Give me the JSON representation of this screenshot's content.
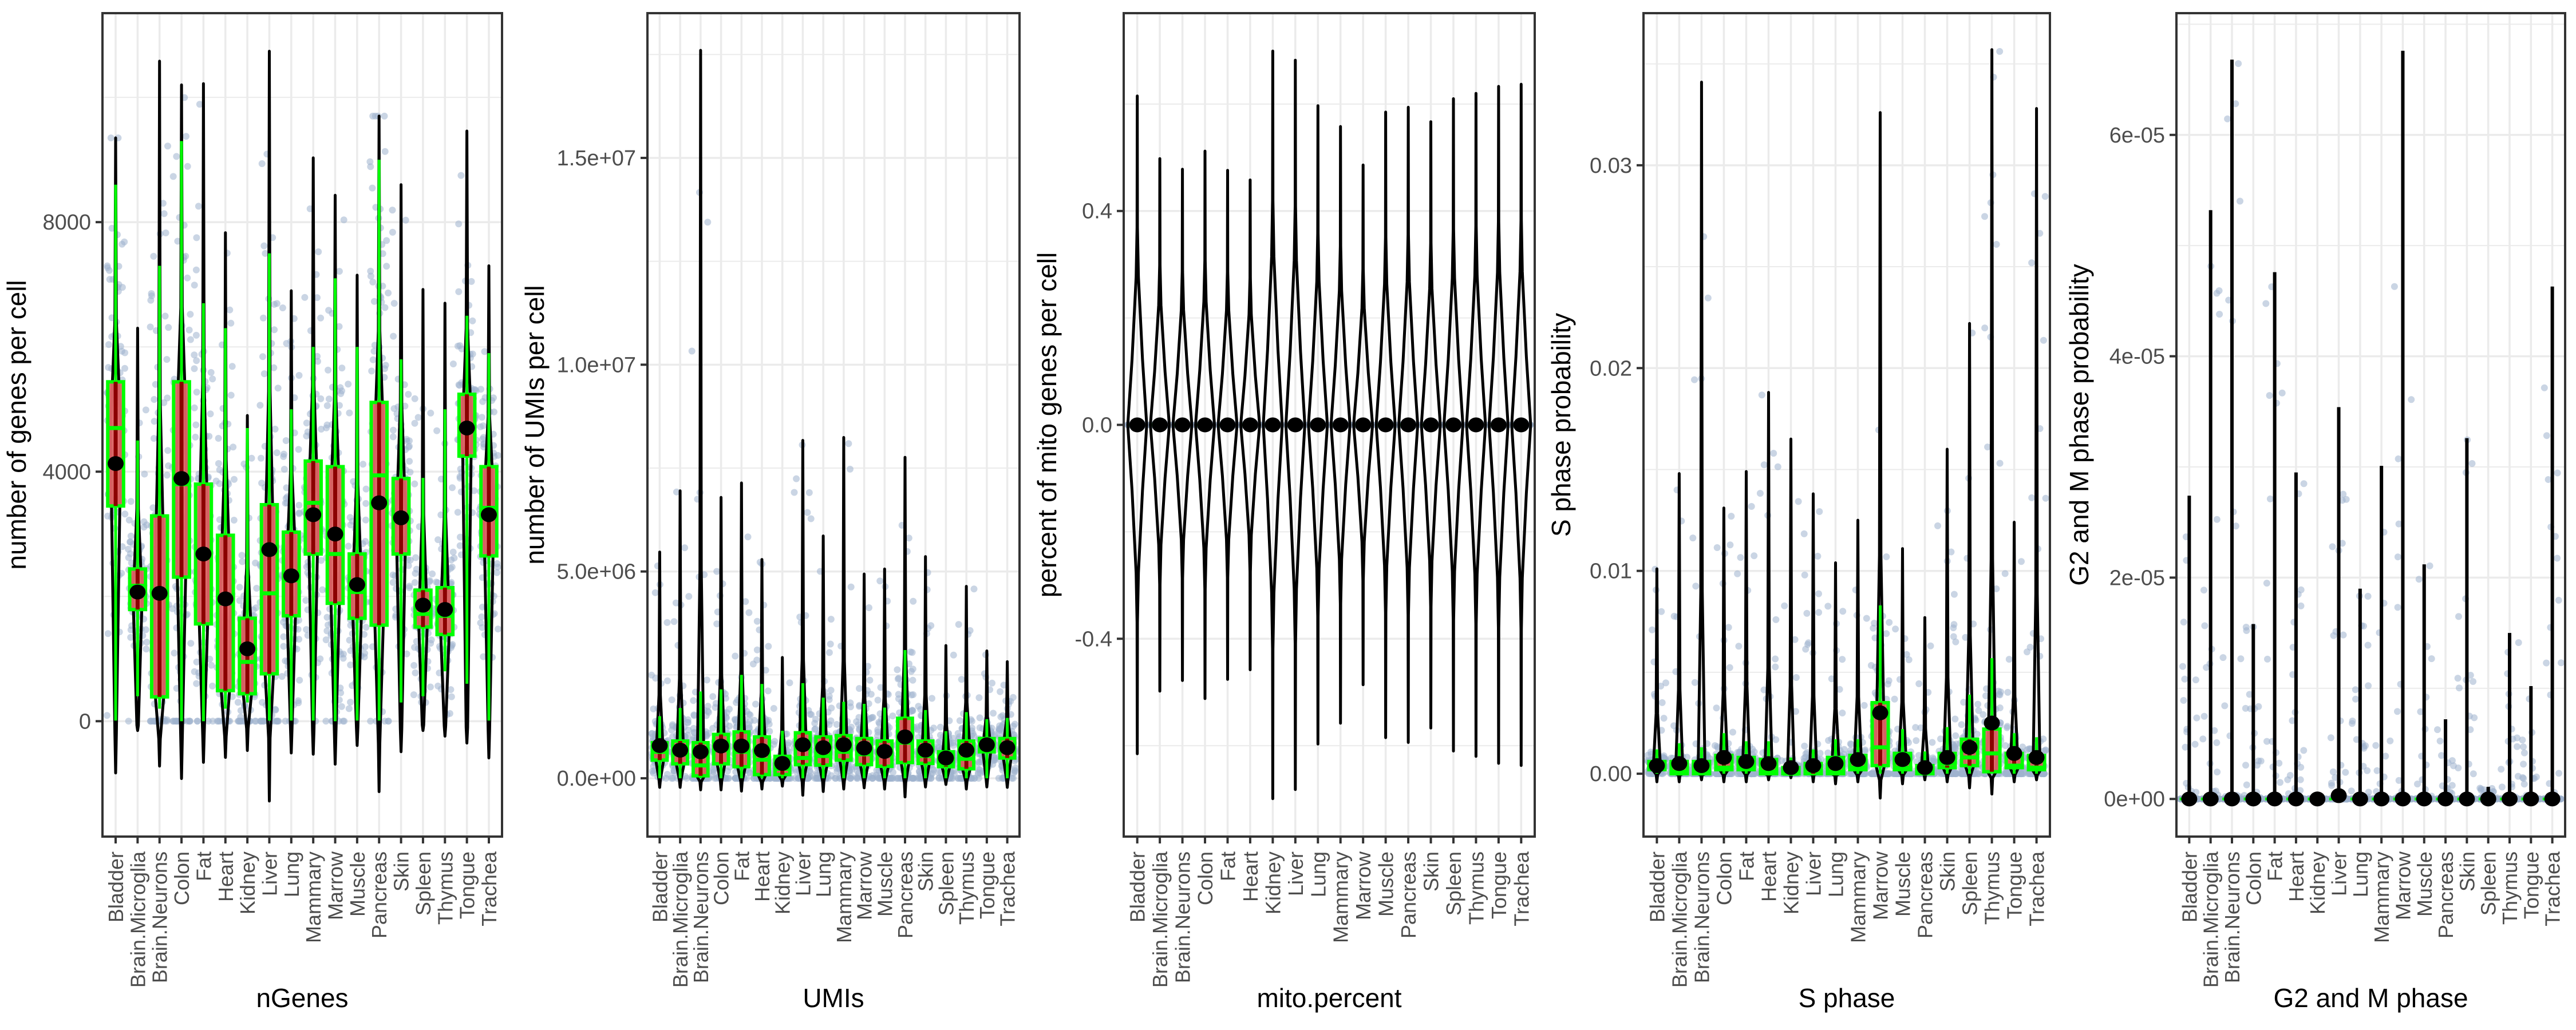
{
  "chart_data": [
    {
      "type": "violin",
      "id": "ngenes",
      "title": "",
      "xlabel": "nGenes",
      "ylabel": "number of genes per cell",
      "ylim": [
        -1850,
        11350
      ],
      "yticks": [
        0,
        4000,
        8000
      ],
      "ytick_labels": [
        "0",
        "4000",
        "8000"
      ],
      "grid": true,
      "categories": [
        "Bladder",
        "Brain.Microglia",
        "Brain.Neurons",
        "Colon",
        "Fat",
        "Heart",
        "Kidney",
        "Liver",
        "Lung",
        "Mammary",
        "Marrow",
        "Muscle",
        "Pancreas",
        "Skin",
        "Spleen",
        "Thymus",
        "Tongue",
        "Trachea"
      ],
      "stats": {
        "q1": [
          3450,
          1790,
          390,
          2310,
          1560,
          490,
          440,
          760,
          1690,
          2680,
          1890,
          1650,
          1540,
          2680,
          1510,
          1390,
          4250,
          2650
        ],
        "median": [
          4700,
          2170,
          2070,
          3800,
          2640,
          1890,
          950,
          2050,
          2260,
          3500,
          2680,
          2070,
          3940,
          3240,
          1720,
          1690,
          4690,
          3420
        ],
        "q3": [
          5440,
          2440,
          3290,
          5440,
          3800,
          2980,
          1650,
          3470,
          3030,
          4170,
          4080,
          2680,
          5110,
          3890,
          2100,
          2140,
          5240,
          4080
        ],
        "mean": [
          4130,
          2070,
          2050,
          3890,
          2680,
          1960,
          1160,
          2750,
          2330,
          3310,
          3000,
          2190,
          3500,
          3260,
          1860,
          1790,
          4700,
          3310
        ],
        "violin_max": [
          9350,
          6300,
          10580,
          10200,
          10220,
          7830,
          4900,
          10740,
          6900,
          9030,
          8430,
          7150,
          9700,
          8600,
          6920,
          6700,
          9460,
          7300
        ],
        "violin_min": [
          -830,
          -150,
          -720,
          -920,
          -660,
          -580,
          -470,
          -1280,
          -510,
          -530,
          -690,
          -390,
          -1130,
          -490,
          -150,
          -240,
          -350,
          -590
        ],
        "whisker_high": [
          8600,
          4500,
          7300,
          9300,
          6700,
          6300,
          4700,
          7500,
          5000,
          6000,
          7100,
          6000,
          9000,
          5800,
          3900,
          5000,
          6500,
          5900
        ],
        "whisker_low": [
          10,
          400,
          200,
          0,
          0,
          200,
          300,
          10,
          10,
          10,
          0,
          10,
          10,
          300,
          400,
          800,
          600,
          10
        ]
      }
    },
    {
      "type": "violin",
      "id": "umis",
      "xlabel": "UMIs",
      "ylabel": "number of UMIs per cell",
      "ylim": [
        -1410000,
        18500000
      ],
      "yticks": [
        0,
        5000000,
        10000000,
        15000000
      ],
      "ytick_labels": [
        "0.0e+00",
        "5.0e+06",
        "1.0e+07",
        "1.5e+07"
      ],
      "grid": true,
      "categories": [
        "Bladder",
        "Brain.Microglia",
        "Brain.Neurons",
        "Colon",
        "Fat",
        "Heart",
        "Kidney",
        "Liver",
        "Lung",
        "Mammary",
        "Marrow",
        "Muscle",
        "Pancreas",
        "Skin",
        "Spleen",
        "Thymus",
        "Tongue",
        "Trachea"
      ],
      "stats": {
        "q1": [
          440000,
          350000,
          60000,
          350000,
          280000,
          90000,
          90000,
          330000,
          320000,
          440000,
          330000,
          290000,
          380000,
          360000,
          280000,
          230000,
          640000,
          490000
        ],
        "median": [
          640000,
          580000,
          310000,
          680000,
          640000,
          450000,
          230000,
          490000,
          540000,
          640000,
          580000,
          550000,
          860000,
          540000,
          350000,
          470000,
          670000,
          730000
        ],
        "q3": [
          860000,
          900000,
          860000,
          1060000,
          1120000,
          1000000,
          530000,
          1100000,
          1000000,
          1030000,
          960000,
          900000,
          1450000,
          900000,
          640000,
          900000,
          960000,
          960000
        ],
        "mean": [
          790000,
          680000,
          640000,
          780000,
          780000,
          670000,
          360000,
          810000,
          740000,
          810000,
          730000,
          650000,
          1000000,
          680000,
          490000,
          680000,
          810000,
          740000
        ],
        "violin_max": [
          5470000,
          6950000,
          17600000,
          6790000,
          7140000,
          5290000,
          2920000,
          8170000,
          5860000,
          8240000,
          4940000,
          5060000,
          7760000,
          5360000,
          3210000,
          4640000,
          3080000,
          2820000
        ],
        "violin_min": [
          -220000,
          -220000,
          -280000,
          -280000,
          -310000,
          -260000,
          -190000,
          -410000,
          -320000,
          -260000,
          -230000,
          -260000,
          -450000,
          -210000,
          -150000,
          -260000,
          -210000,
          -220000
        ],
        "whisker_high": [
          1500000,
          1700000,
          2100000,
          2150000,
          2500000,
          2280000,
          1150000,
          2300000,
          1950000,
          1850000,
          1800000,
          1710000,
          3100000,
          1650000,
          1140000,
          1600000,
          1430000,
          1460000
        ],
        "whisker_low": [
          0,
          0,
          0,
          0,
          0,
          0,
          0,
          0,
          0,
          0,
          0,
          0,
          0,
          0,
          0,
          0,
          0,
          0
        ]
      }
    },
    {
      "type": "violin",
      "id": "mito",
      "xlabel": "mito.percent",
      "ylabel": "percent of mito genes per cell",
      "ylim": [
        -0.77,
        0.77
      ],
      "yticks": [
        -0.4,
        0.0,
        0.4
      ],
      "ytick_labels": [
        "-0.4",
        "0.0",
        "0.4"
      ],
      "grid": true,
      "categories": [
        "Bladder",
        "Brain.Microglia",
        "Brain.Neurons",
        "Colon",
        "Fat",
        "Heart",
        "Kidney",
        "Liver",
        "Lung",
        "Mammary",
        "Marrow",
        "Muscle",
        "Pancreas",
        "Skin",
        "Spleen",
        "Thymus",
        "Tongue",
        "Trachea"
      ],
      "stats": {
        "q1": [
          0,
          0,
          0,
          0,
          0,
          0,
          0,
          0,
          0,
          0,
          0,
          0,
          0,
          0,
          0,
          0,
          0,
          0
        ],
        "median": [
          0,
          0,
          0,
          0,
          0,
          0,
          0,
          0,
          0,
          0,
          0,
          0,
          0,
          0,
          0,
          0,
          0,
          0
        ],
        "q3": [
          0,
          0,
          0,
          0,
          0,
          0,
          0,
          0,
          0,
          0,
          0,
          0,
          0,
          0,
          0,
          0,
          0,
          0
        ],
        "mean": [
          0,
          0,
          0,
          0,
          0,
          0,
          0,
          0,
          0,
          0,
          0,
          0,
          0,
          0,
          0,
          0,
          0,
          0
        ],
        "violin_max": [
          0.615,
          0.498,
          0.478,
          0.512,
          0.476,
          0.458,
          0.699,
          0.682,
          0.597,
          0.558,
          0.486,
          0.585,
          0.594,
          0.567,
          0.61,
          0.62,
          0.633,
          0.637
        ],
        "violin_min": [
          -0.615,
          -0.498,
          -0.478,
          -0.512,
          -0.476,
          -0.458,
          -0.699,
          -0.682,
          -0.597,
          -0.558,
          -0.486,
          -0.585,
          -0.594,
          -0.567,
          -0.61,
          -0.62,
          -0.633,
          -0.637
        ],
        "whisker_high": [
          0,
          0,
          0,
          0,
          0,
          0,
          0,
          0,
          0,
          0,
          0,
          0,
          0,
          0,
          0,
          0,
          0,
          0
        ],
        "whisker_low": [
          0,
          0,
          0,
          0,
          0,
          0,
          0,
          0,
          0,
          0,
          0,
          0,
          0,
          0,
          0,
          0,
          0,
          0
        ]
      },
      "violin_shape": "symmetric"
    },
    {
      "type": "violin",
      "id": "sphase",
      "xlabel": "S phase",
      "ylabel": "S phase probability",
      "ylim": [
        -0.0031,
        0.0375
      ],
      "yticks": [
        0.0,
        0.01,
        0.02,
        0.03
      ],
      "ytick_labels": [
        "0.00",
        "0.01",
        "0.02",
        "0.03"
      ],
      "grid": true,
      "categories": [
        "Bladder",
        "Brain.Microglia",
        "Brain.Neurons",
        "Colon",
        "Fat",
        "Heart",
        "Kidney",
        "Liver",
        "Lung",
        "Mammary",
        "Marrow",
        "Muscle",
        "Pancreas",
        "Skin",
        "Spleen",
        "Thymus",
        "Tongue",
        "Trachea"
      ],
      "stats": {
        "q1": [
          0.0002,
          0.0,
          0.0,
          0.0002,
          0.0002,
          0.0,
          0.0,
          0.0,
          0.0,
          0.0002,
          0.0004,
          0.0002,
          0.0,
          0.0003,
          0.0004,
          0.0001,
          0.0003,
          0.0002
        ],
        "median": [
          0.0004,
          0.0001,
          0.0001,
          0.0003,
          0.0003,
          0.0001,
          0.0,
          0.0002,
          0.0001,
          0.0003,
          0.0013,
          0.0003,
          0.0001,
          0.0005,
          0.0008,
          0.001,
          0.0004,
          0.0003
        ],
        "q3": [
          0.0006,
          0.0006,
          0.0006,
          0.0009,
          0.0008,
          0.0007,
          0.0003,
          0.0005,
          0.0008,
          0.0009,
          0.0035,
          0.001,
          0.0004,
          0.001,
          0.0017,
          0.0022,
          0.001,
          0.0009
        ],
        "mean": [
          0.0004,
          0.0005,
          0.0004,
          0.0008,
          0.0006,
          0.0005,
          0.0003,
          0.0004,
          0.0005,
          0.0007,
          0.003,
          0.0007,
          0.0003,
          0.0008,
          0.0013,
          0.0025,
          0.001,
          0.0008
        ],
        "violin_max": [
          0.0101,
          0.0148,
          0.0341,
          0.0131,
          0.0149,
          0.0188,
          0.0165,
          0.0138,
          0.0104,
          0.0125,
          0.0326,
          0.0111,
          0.0077,
          0.016,
          0.0222,
          0.0357,
          0.0124,
          0.0328
        ],
        "violin_min": [
          -0.0004,
          -0.0004,
          -0.0003,
          -0.0004,
          -0.0004,
          -0.0003,
          -0.0002,
          -0.0004,
          -0.0005,
          -0.0004,
          -0.0012,
          -0.0005,
          -0.0003,
          -0.0004,
          -0.0007,
          -0.001,
          -0.0004,
          -0.0003
        ],
        "whisker_high": [
          0.0012,
          0.0015,
          0.0013,
          0.002,
          0.0016,
          0.0016,
          0.0008,
          0.0012,
          0.0017,
          0.0017,
          0.0083,
          0.0022,
          0.0011,
          0.0023,
          0.0039,
          0.0057,
          0.002,
          0.0018
        ],
        "whisker_low": [
          0,
          0,
          0,
          0,
          0,
          0,
          0,
          0,
          0,
          0,
          0,
          0,
          0,
          0,
          0,
          0,
          0,
          0
        ]
      }
    },
    {
      "type": "violin",
      "id": "g2m",
      "xlabel": "G2 and M phase",
      "ylabel": "G2 and M phase probability",
      "ylim": [
        -3.4e-06,
        7.1e-05
      ],
      "yticks": [
        0,
        2e-05,
        4e-05,
        6e-05
      ],
      "ytick_labels": [
        "0e+00",
        "2e-05",
        "4e-05",
        "6e-05"
      ],
      "grid": true,
      "categories": [
        "Bladder",
        "Brain.Microglia",
        "Brain.Neurons",
        "Colon",
        "Fat",
        "Heart",
        "Kidney",
        "Liver",
        "Lung",
        "Mammary",
        "Marrow",
        "Muscle",
        "Pancreas",
        "Skin",
        "Spleen",
        "Thymus",
        "Tongue",
        "Trachea"
      ],
      "stats": {
        "q1": [
          0,
          0,
          0,
          0,
          0,
          0,
          0,
          0,
          0,
          0,
          0,
          0,
          0,
          0,
          0,
          0,
          0,
          0
        ],
        "median": [
          0,
          0,
          0,
          0,
          0,
          0,
          0,
          0,
          0,
          0,
          0,
          0,
          0,
          0,
          0,
          0,
          0,
          0
        ],
        "q3": [
          0,
          0,
          0,
          0,
          0,
          0,
          0,
          0,
          0,
          0,
          0,
          0,
          0,
          0,
          0,
          0,
          0,
          0
        ],
        "mean": [
          0,
          0,
          0,
          0,
          0,
          0,
          0,
          3e-07,
          0,
          0,
          0,
          0,
          0,
          0,
          0,
          0,
          0,
          0
        ],
        "violin_max": [
          2.74e-05,
          5.32e-05,
          6.68e-05,
          1.58e-05,
          4.76e-05,
          2.95e-05,
          0,
          3.54e-05,
          1.9e-05,
          3.01e-05,
          6.76e-05,
          2.12e-05,
          7.2e-06,
          3.26e-05,
          1.1e-06,
          1.5e-05,
          1.02e-05,
          4.63e-05
        ],
        "violin_min": [
          0,
          0,
          0,
          0,
          0,
          0,
          0,
          0,
          0,
          0,
          0,
          0,
          0,
          0,
          0,
          0,
          0,
          0
        ],
        "whisker_high": [
          0,
          0,
          0,
          0,
          0,
          0,
          0,
          0,
          0,
          0,
          0,
          0,
          0,
          0,
          0,
          0,
          0,
          0
        ],
        "whisker_low": [
          0,
          0,
          0,
          0,
          0,
          0,
          0,
          0,
          0,
          0,
          0,
          0,
          0,
          0,
          0,
          0,
          0,
          0
        ]
      },
      "violin_shape": "spike"
    }
  ],
  "colors": {
    "points": "#9fb3cd",
    "box_fill": "#e06666",
    "box_border": "#00ff00",
    "violin": "#000000",
    "violin_inner": "#8b0000",
    "mean_dot": "#000000",
    "grid": "#ebebeb",
    "panel_border": "#333333"
  }
}
